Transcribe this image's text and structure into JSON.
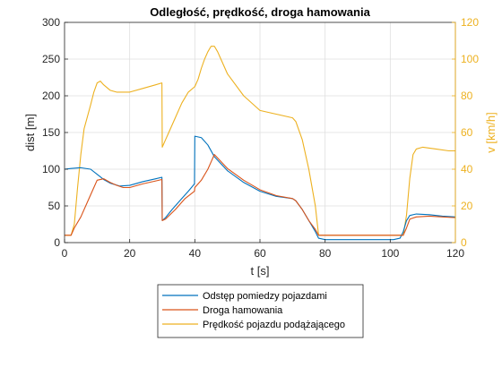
{
  "chart_data": {
    "type": "line",
    "title": "Odległość, prędkość, droga hamowania",
    "xlabel": "t [s]",
    "ylabel_left": "dist [m]",
    "ylabel_right": "v [km/h]",
    "xlim": [
      0,
      120
    ],
    "ylim_left": [
      0,
      300
    ],
    "ylim_right": [
      0,
      120
    ],
    "xticks": [
      "0",
      "20",
      "40",
      "60",
      "80",
      "100",
      "120"
    ],
    "yticks_left": [
      "0",
      "50",
      "100",
      "150",
      "200",
      "250",
      "300"
    ],
    "yticks_right": [
      "0",
      "20",
      "40",
      "60",
      "80",
      "100",
      "120"
    ],
    "grid": true,
    "legend_position": "below-plot",
    "series": [
      {
        "name": "Odstęp pomiedzy pojazdami",
        "axis": "left",
        "color": "#0072BD",
        "x": [
          0,
          2,
          5,
          8,
          10,
          12,
          14,
          17,
          20,
          24,
          28,
          29.9,
          30,
          31,
          33,
          36,
          38,
          39.9,
          40,
          42,
          44,
          46,
          50,
          55,
          60,
          65,
          70,
          71,
          73,
          75,
          77,
          78,
          80,
          90,
          100,
          101,
          103,
          104,
          105,
          106,
          108,
          112,
          116,
          120
        ],
        "y": [
          100,
          101,
          102,
          100,
          93,
          86,
          81,
          77,
          78,
          83,
          87,
          89,
          30,
          34,
          45,
          60,
          70,
          80,
          145,
          143,
          133,
          117,
          98,
          82,
          70,
          63,
          60,
          57,
          45,
          30,
          15,
          6,
          4,
          4,
          4,
          4,
          6,
          15,
          30,
          37,
          39,
          38,
          36,
          35
        ]
      },
      {
        "name": "Droga hamowania",
        "axis": "left",
        "color": "#D95319",
        "x": [
          0,
          2,
          3,
          5,
          7,
          9,
          10,
          12,
          14,
          16,
          18,
          20,
          24,
          28,
          29.9,
          30,
          31,
          34,
          37,
          39.9,
          40,
          42,
          44,
          45,
          46,
          50,
          55,
          60,
          65,
          70,
          71,
          73,
          75,
          77,
          78,
          80,
          90,
          100,
          102,
          104,
          105,
          106,
          108,
          112,
          116,
          120
        ],
        "y": [
          10,
          10,
          20,
          35,
          55,
          75,
          85,
          87,
          82,
          78,
          75,
          75,
          80,
          84,
          86,
          30,
          32,
          45,
          60,
          70,
          75,
          85,
          100,
          110,
          120,
          101,
          85,
          72,
          64,
          60,
          57,
          45,
          30,
          18,
          10,
          10,
          10,
          10,
          10,
          10,
          20,
          32,
          35,
          36,
          35,
          34
        ]
      },
      {
        "name": "Prędkość pojazdu podążającego",
        "axis": "right",
        "color": "#EDB120",
        "x": [
          0,
          2,
          3,
          4,
          5,
          6,
          8,
          9,
          10,
          11,
          12,
          14,
          16,
          20,
          24,
          28,
          29.9,
          30,
          31,
          32,
          34,
          36,
          38,
          40,
          41,
          42,
          43,
          44,
          45,
          46,
          47,
          48,
          50,
          55,
          60,
          65,
          70,
          71,
          73,
          75,
          76,
          77,
          78,
          80,
          90,
          100,
          102,
          104,
          105,
          106,
          107,
          108,
          110,
          114,
          118,
          120
        ],
        "y": [
          4,
          4,
          10,
          30,
          48,
          62,
          75,
          82,
          87,
          88,
          86,
          83,
          82,
          82,
          84,
          86,
          87,
          52,
          56,
          60,
          68,
          76,
          82,
          85,
          89,
          95,
          100,
          104,
          107,
          107,
          104,
          100,
          92,
          80,
          72,
          70,
          68,
          66,
          56,
          40,
          30,
          20,
          4,
          4,
          4,
          4,
          4,
          4,
          15,
          35,
          48,
          51,
          52,
          51,
          50,
          50
        ]
      }
    ]
  }
}
